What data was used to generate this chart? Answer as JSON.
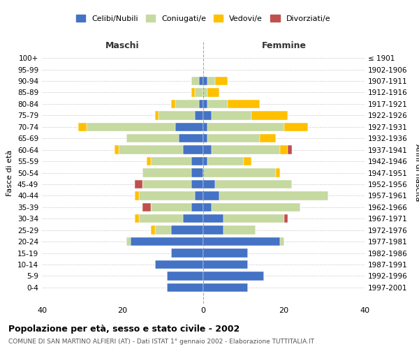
{
  "age_groups": [
    "0-4",
    "5-9",
    "10-14",
    "15-19",
    "20-24",
    "25-29",
    "30-34",
    "35-39",
    "40-44",
    "45-49",
    "50-54",
    "55-59",
    "60-64",
    "65-69",
    "70-74",
    "75-79",
    "80-84",
    "85-89",
    "90-94",
    "95-99",
    "100+"
  ],
  "birth_years": [
    "1997-2001",
    "1992-1996",
    "1987-1991",
    "1982-1986",
    "1977-1981",
    "1972-1976",
    "1967-1971",
    "1962-1966",
    "1957-1961",
    "1952-1956",
    "1947-1951",
    "1942-1946",
    "1937-1941",
    "1932-1936",
    "1927-1931",
    "1922-1926",
    "1917-1921",
    "1912-1916",
    "1907-1911",
    "1902-1906",
    "≤ 1901"
  ],
  "maschi": {
    "celibi": [
      9,
      9,
      12,
      8,
      18,
      8,
      5,
      3,
      2,
      3,
      3,
      3,
      5,
      6,
      7,
      2,
      1,
      0,
      1,
      0,
      0
    ],
    "coniugati": [
      0,
      0,
      0,
      0,
      1,
      4,
      11,
      10,
      14,
      12,
      12,
      10,
      16,
      13,
      22,
      9,
      6,
      2,
      2,
      0,
      0
    ],
    "vedovi": [
      0,
      0,
      0,
      0,
      0,
      1,
      1,
      0,
      1,
      0,
      0,
      1,
      1,
      0,
      2,
      1,
      1,
      1,
      0,
      0,
      0
    ],
    "divorziati": [
      0,
      0,
      0,
      0,
      0,
      0,
      0,
      2,
      0,
      2,
      0,
      0,
      0,
      0,
      0,
      0,
      0,
      0,
      0,
      0,
      0
    ]
  },
  "femmine": {
    "nubili": [
      11,
      15,
      11,
      11,
      19,
      5,
      5,
      2,
      4,
      3,
      0,
      1,
      2,
      1,
      1,
      2,
      1,
      0,
      1,
      0,
      0
    ],
    "coniugate": [
      0,
      0,
      0,
      0,
      1,
      8,
      15,
      22,
      27,
      19,
      18,
      9,
      17,
      13,
      19,
      10,
      5,
      1,
      2,
      0,
      0
    ],
    "vedove": [
      0,
      0,
      0,
      0,
      0,
      0,
      0,
      0,
      0,
      0,
      1,
      2,
      2,
      4,
      6,
      9,
      8,
      3,
      3,
      0,
      0
    ],
    "divorziate": [
      0,
      0,
      0,
      0,
      0,
      0,
      1,
      0,
      0,
      0,
      0,
      0,
      1,
      0,
      0,
      0,
      0,
      0,
      0,
      0,
      0
    ]
  },
  "color_celibi": "#4472c4",
  "color_coniugati": "#c5d9a0",
  "color_vedovi": "#ffc000",
  "color_divorziati": "#c0504d",
  "title": "Popolazione per età, sesso e stato civile - 2002",
  "subtitle": "COMUNE DI SAN MARTINO ALFIERI (AT) - Dati ISTAT 1° gennaio 2002 - Elaborazione TUTTITALIA.IT",
  "xlabel_left": "Maschi",
  "xlabel_right": "Femmine",
  "ylabel_left": "Fasce di età",
  "ylabel_right": "Anni di nascita",
  "xlim": 40,
  "bg_color": "#ffffff",
  "grid_color": "#cccccc",
  "label_color_maschi": "#333333",
  "label_color_femmine": "#333333"
}
